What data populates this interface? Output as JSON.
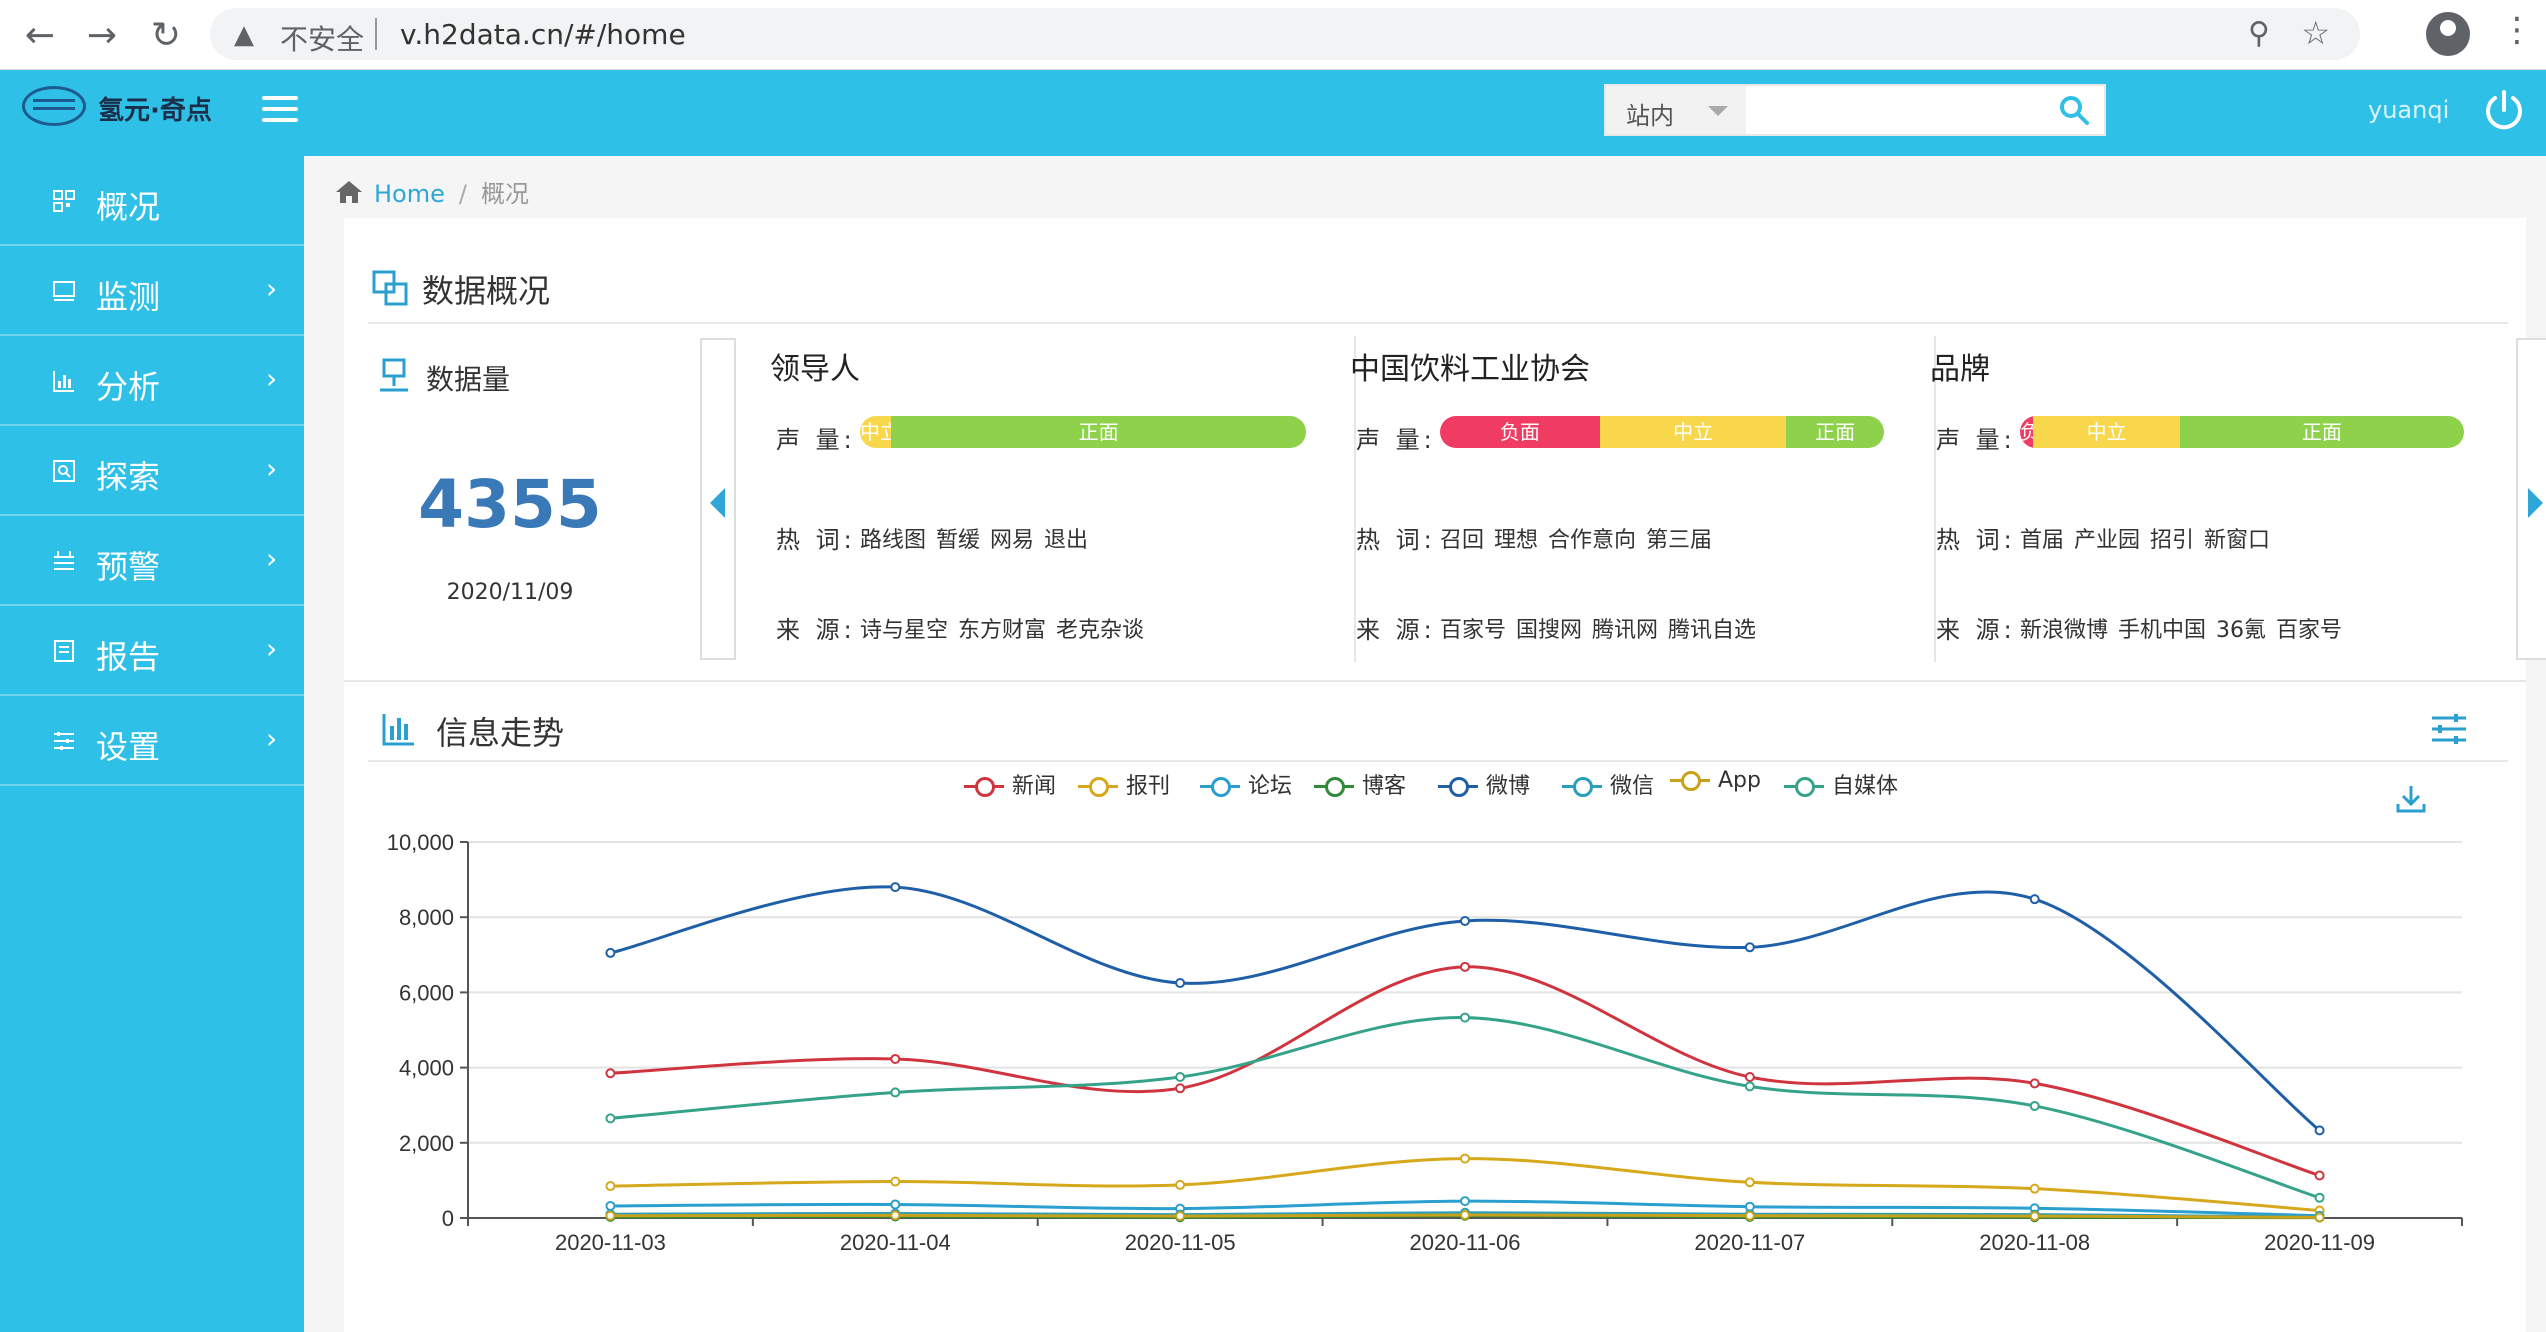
{
  "browser": {
    "insecure_label": "不安全",
    "url": "v.h2data.cn/#/home"
  },
  "header": {
    "logo_text": "氢元·奇点",
    "search_scope": "站内",
    "search_placeholder": "",
    "username": "yuanqi"
  },
  "sidebar": {
    "items": [
      {
        "label": "概况",
        "icon": "dashboard-icon"
      },
      {
        "label": "监测",
        "icon": "monitor-icon"
      },
      {
        "label": "分析",
        "icon": "bar-chart-icon"
      },
      {
        "label": "探索",
        "icon": "explore-icon"
      },
      {
        "label": "预警",
        "icon": "alert-icon"
      },
      {
        "label": "报告",
        "icon": "report-icon"
      },
      {
        "label": "设置",
        "icon": "settings-icon"
      }
    ]
  },
  "breadcrumb": {
    "home": "Home",
    "slash": "/",
    "current": "概况"
  },
  "overview": {
    "title": "数据概况",
    "count_label": "数据量",
    "count_value": "4355",
    "count_date": "2020/11/09",
    "labels": {
      "volume": "声 量:",
      "hot": "热 词:",
      "source": "来 源:"
    },
    "cards": [
      {
        "title": "领导人",
        "sentiment": [
          {
            "label": "中立",
            "share": 0.07,
            "color": "#f8d74d"
          },
          {
            "label": "正面",
            "share": 0.93,
            "color": "#8dd24a"
          }
        ],
        "hot_words": [
          "路线图",
          "暂缓",
          "网易",
          "退出"
        ],
        "sources": [
          "诗与星空",
          "东方财富",
          "老克杂谈"
        ]
      },
      {
        "title": "中国饮料工业协会",
        "sentiment": [
          {
            "label": "负面",
            "share": 0.36,
            "color": "#f03c62"
          },
          {
            "label": "中立",
            "share": 0.42,
            "color": "#f8d74d"
          },
          {
            "label": "正面",
            "share": 0.22,
            "color": "#8dd24a"
          }
        ],
        "hot_words": [
          "召回",
          "理想",
          "合作意向",
          "第三届"
        ],
        "sources": [
          "百家号",
          "国搜网",
          "腾讯网",
          "腾讯自选"
        ]
      },
      {
        "title": "品牌",
        "sentiment": [
          {
            "label": "负",
            "share": 0.03,
            "color": "#f03c62"
          },
          {
            "label": "中立",
            "share": 0.33,
            "color": "#f8d74d"
          },
          {
            "label": "正面",
            "share": 0.64,
            "color": "#8dd24a"
          }
        ],
        "hot_words": [
          "首届",
          "产业园",
          "招引",
          "新窗口"
        ],
        "sources": [
          "新浪微博",
          "手机中国",
          "36氪",
          "百家号"
        ]
      }
    ]
  },
  "trend": {
    "title": "信息走势"
  },
  "chart_data": {
    "type": "line",
    "title": "",
    "xlabel": "",
    "ylabel": "",
    "ylim": [
      0,
      10000
    ],
    "yticks": [
      "0",
      "2,000",
      "4,000",
      "6,000",
      "8,000",
      "10,000"
    ],
    "categories": [
      "2020-11-03",
      "2020-11-04",
      "2020-11-05",
      "2020-11-06",
      "2020-11-07",
      "2020-11-08",
      "2020-11-09"
    ],
    "legend_position": "top",
    "grid": true,
    "series": [
      {
        "name": "新闻",
        "color": "#d0343f",
        "values": [
          3850,
          4230,
          3450,
          6680,
          3750,
          3580,
          1130
        ]
      },
      {
        "name": "报刊",
        "color": "#d6a81c",
        "values": [
          850,
          970,
          880,
          1580,
          950,
          780,
          200
        ]
      },
      {
        "name": "论坛",
        "color": "#2a9fd0",
        "values": [
          320,
          360,
          250,
          450,
          300,
          260,
          60
        ]
      },
      {
        "name": "博客",
        "color": "#2f8a3a",
        "values": [
          30,
          40,
          20,
          60,
          30,
          20,
          10
        ]
      },
      {
        "name": "微博",
        "color": "#1f5fa8",
        "values": [
          7050,
          8800,
          6250,
          7900,
          7200,
          8480,
          2330
        ]
      },
      {
        "name": "微信",
        "color": "#2b9eb8",
        "values": [
          100,
          120,
          90,
          140,
          100,
          90,
          20
        ]
      },
      {
        "name": "App",
        "color": "#c9a11a",
        "values": [
          60,
          70,
          50,
          80,
          60,
          50,
          15
        ]
      },
      {
        "name": "自媒体",
        "color": "#35a38a",
        "values": [
          2650,
          3340,
          3750,
          5330,
          3500,
          2980,
          540
        ]
      }
    ]
  }
}
